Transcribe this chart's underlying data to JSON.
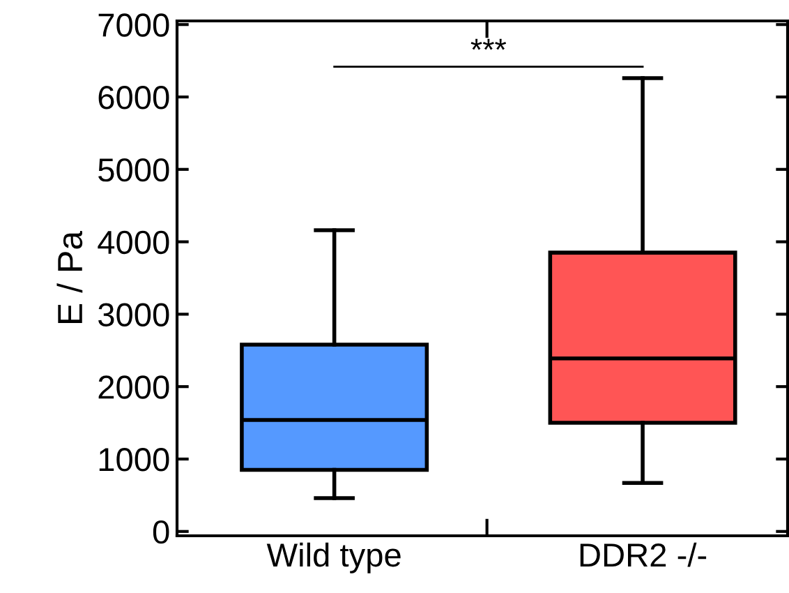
{
  "chart_data": {
    "type": "box",
    "ylabel": "E / Pa",
    "categories": [
      "Wild type",
      "DDR2 -/-"
    ],
    "boxes": [
      {
        "low": 460,
        "q1": 850,
        "median": 1540,
        "q3": 2580,
        "high": 4160
      },
      {
        "low": 670,
        "q1": 1500,
        "median": 2390,
        "q3": 3850,
        "high": 6260
      }
    ],
    "colors": [
      "#5599ff",
      "#ff5555"
    ],
    "ylim": [
      -60,
      7050
    ],
    "yticks": [
      0,
      1000,
      2000,
      3000,
      4000,
      5000,
      6000,
      7000
    ],
    "annotations": [
      "***"
    ],
    "grid": false,
    "legend": false
  }
}
